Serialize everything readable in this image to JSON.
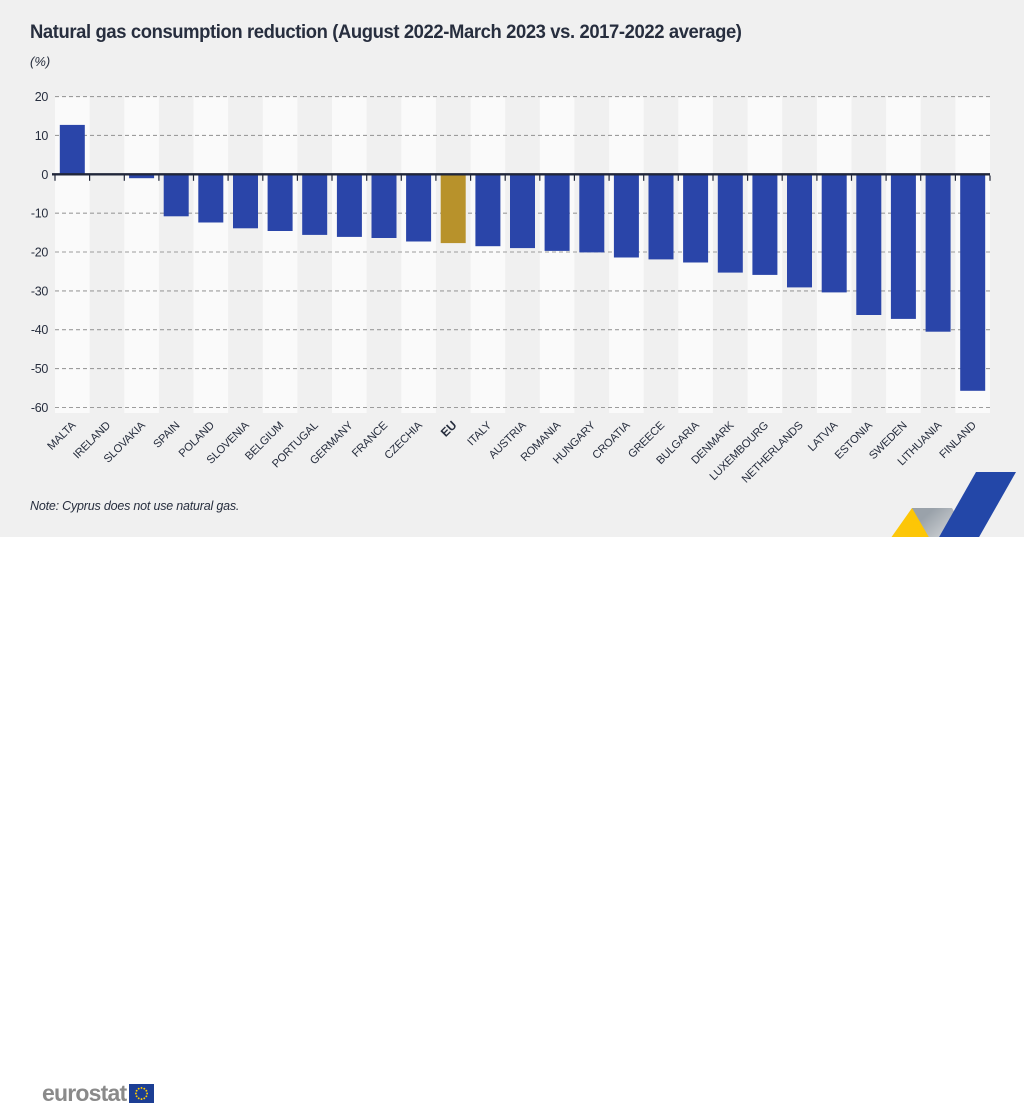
{
  "header": {
    "title": "Natural gas consumption reduction (August 2022-March 2023 vs. 2017-2022 average)",
    "subtitle": "(%)"
  },
  "chart_data": {
    "type": "bar",
    "categories": [
      "MALTA",
      "IRELAND",
      "SLOVAKIA",
      "SPAIN",
      "POLAND",
      "SLOVENIA",
      "BELGIUM",
      "PORTUGAL",
      "GERMANY",
      "FRANCE",
      "CZECHIA",
      "EU",
      "ITALY",
      "AUSTRIA",
      "ROMANIA",
      "HUNGARY",
      "CROATIA",
      "GREECE",
      "BULGARIA",
      "DENMARK",
      "LUXEMBOURG",
      "NETHERLANDS",
      "LATVIA",
      "ESTONIA",
      "SWEDEN",
      "LITHUANIA",
      "FINLAND"
    ],
    "values": [
      12.7,
      -0.3,
      -1.0,
      -10.8,
      -12.4,
      -13.9,
      -14.6,
      -15.6,
      -16.1,
      -16.4,
      -17.3,
      -17.7,
      -18.5,
      -19.0,
      -19.7,
      -20.1,
      -21.4,
      -21.9,
      -22.7,
      -25.3,
      -25.9,
      -29.1,
      -30.4,
      -36.2,
      -37.2,
      -40.5,
      -55.7
    ],
    "highlight_category": "EU",
    "title": "Natural gas consumption reduction (August 2022-March 2023 vs. 2017-2022 average)",
    "xlabel": "",
    "ylabel": "(%)",
    "ylim": [
      -60,
      20
    ],
    "yticks": [
      20,
      10,
      0,
      -10,
      -20,
      -30,
      -40,
      -50,
      -60
    ],
    "grid": "dashed horizontal",
    "legend": "none"
  },
  "note": "Note: Cyprus does not use natural gas.",
  "footer": {
    "logo_text": "eurostat",
    "flag_icon": "eu-flag-icon"
  },
  "colors": {
    "bar": "#2a45a9",
    "highlight": "#b8922b",
    "grid": "#9c9c9c",
    "axis": "#20263a",
    "stripe": "#fafafa",
    "background": "#f0f0f0",
    "text": "#272e3e",
    "logo_gray": "#8a8a8a",
    "flag_blue": "#1c3e94",
    "star_yellow": "#ffcc00",
    "ribbon_yellow": "#fdc500",
    "ribbon_blue": "#2347a8"
  }
}
